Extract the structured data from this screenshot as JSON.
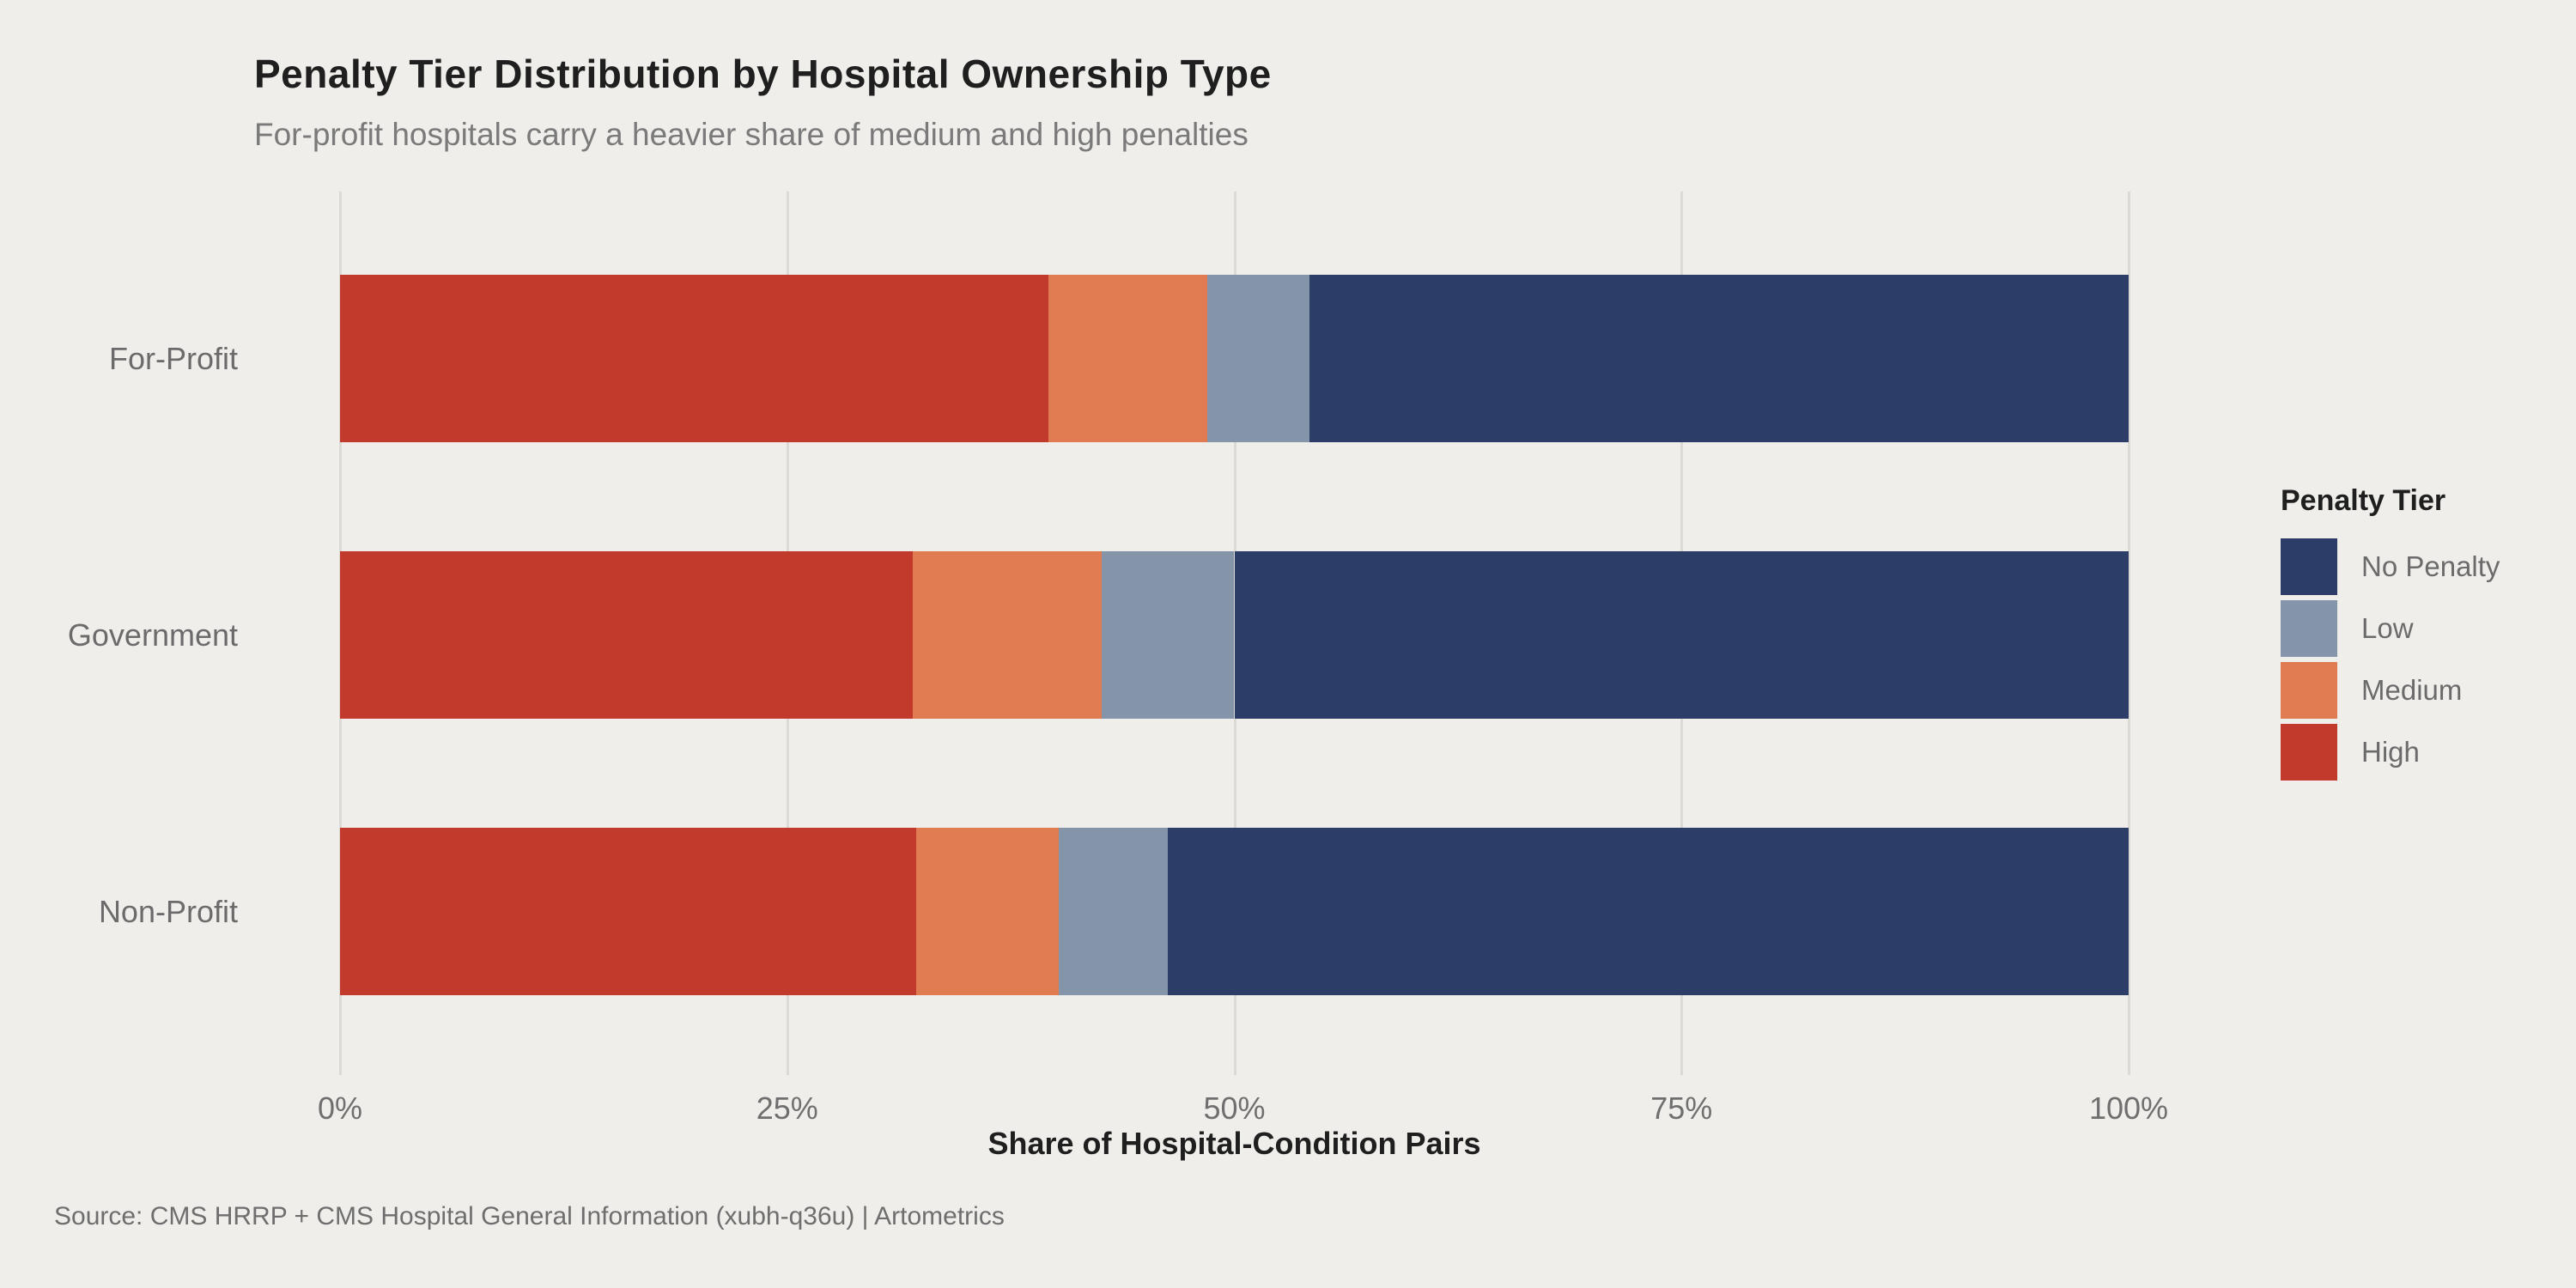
{
  "chart_data": {
    "type": "bar",
    "variant": "horizontal-stacked-100pct",
    "title": "Penalty Tier Distribution by Hospital Ownership Type",
    "subtitle": "For-profit hospitals carry a heavier share of medium and high penalties",
    "xlabel": "Share of Hospital-Condition Pairs",
    "ylabel": "",
    "xlim": [
      0,
      100
    ],
    "x_ticks": [
      {
        "value": 0,
        "label": "0%"
      },
      {
        "value": 25,
        "label": "25%"
      },
      {
        "value": 50,
        "label": "50%"
      },
      {
        "value": 75,
        "label": "75%"
      },
      {
        "value": 100,
        "label": "100%"
      }
    ],
    "grid": "vertical-only",
    "categories": [
      "For-Profit",
      "Government",
      "Non-Profit"
    ],
    "series": [
      {
        "name": "High",
        "color": "#c13a2b",
        "values": [
          39.6,
          32.0,
          32.2
        ]
      },
      {
        "name": "Medium",
        "color": "#e07b52",
        "values": [
          8.9,
          10.6,
          8.0
        ]
      },
      {
        "name": "Low",
        "color": "#8595a9",
        "values": [
          5.7,
          7.4,
          6.1
        ]
      },
      {
        "name": "No Penalty",
        "color": "#2c3e68",
        "values": [
          45.8,
          50.0,
          53.7
        ]
      }
    ],
    "stack_order_left_to_right": [
      "High",
      "Medium",
      "Low",
      "No Penalty"
    ],
    "legend": {
      "title": "Penalty Tier",
      "position": "right",
      "order": [
        "No Penalty",
        "Low",
        "Medium",
        "High"
      ]
    },
    "source": "Source: CMS HRRP + CMS Hospital General Information (xubh-q36u) | Artometrics",
    "colors": {
      "background": "#f0eeea",
      "gridline": "#dcdad5",
      "title_text": "#1f1f1f",
      "subtitle_text": "#7a7a7a",
      "axis_text": "#6f6f6f"
    }
  }
}
